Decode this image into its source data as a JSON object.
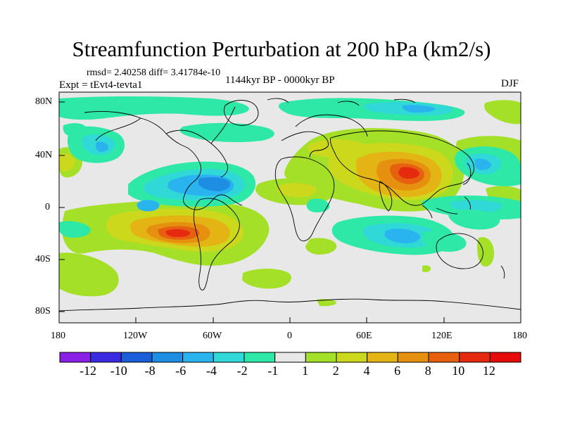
{
  "title": "Streamfunction Perturbation at 200 hPa (km2/s)",
  "stats": "rmsd= 2.40258 diff= 3.41784e-10",
  "experiment": "Expt = tEvt4-tevta1",
  "period": "1144kyr BP - 0000kyr BP",
  "season": "DJF",
  "lat_labels": [
    "80N",
    "40N",
    "0",
    "40S",
    "80S"
  ],
  "lon_labels": [
    "180",
    "120W",
    "60W",
    "0",
    "60E",
    "120E",
    "180"
  ],
  "colorbar": {
    "labels": [
      "-12",
      "-10",
      "-8",
      "-6",
      "-4",
      "-2",
      "-1",
      "1",
      "2",
      "4",
      "6",
      "8",
      "10",
      "12"
    ],
    "colors": [
      "#8a1fe6",
      "#3b2be0",
      "#1a5fd9",
      "#1e8ee3",
      "#2ab4ef",
      "#30d8d8",
      "#2ee8a8",
      "#e8e8e8",
      "#a4e028",
      "#ccd81c",
      "#e4b414",
      "#e69010",
      "#e66010",
      "#e62a10",
      "#e60c0c"
    ]
  }
}
